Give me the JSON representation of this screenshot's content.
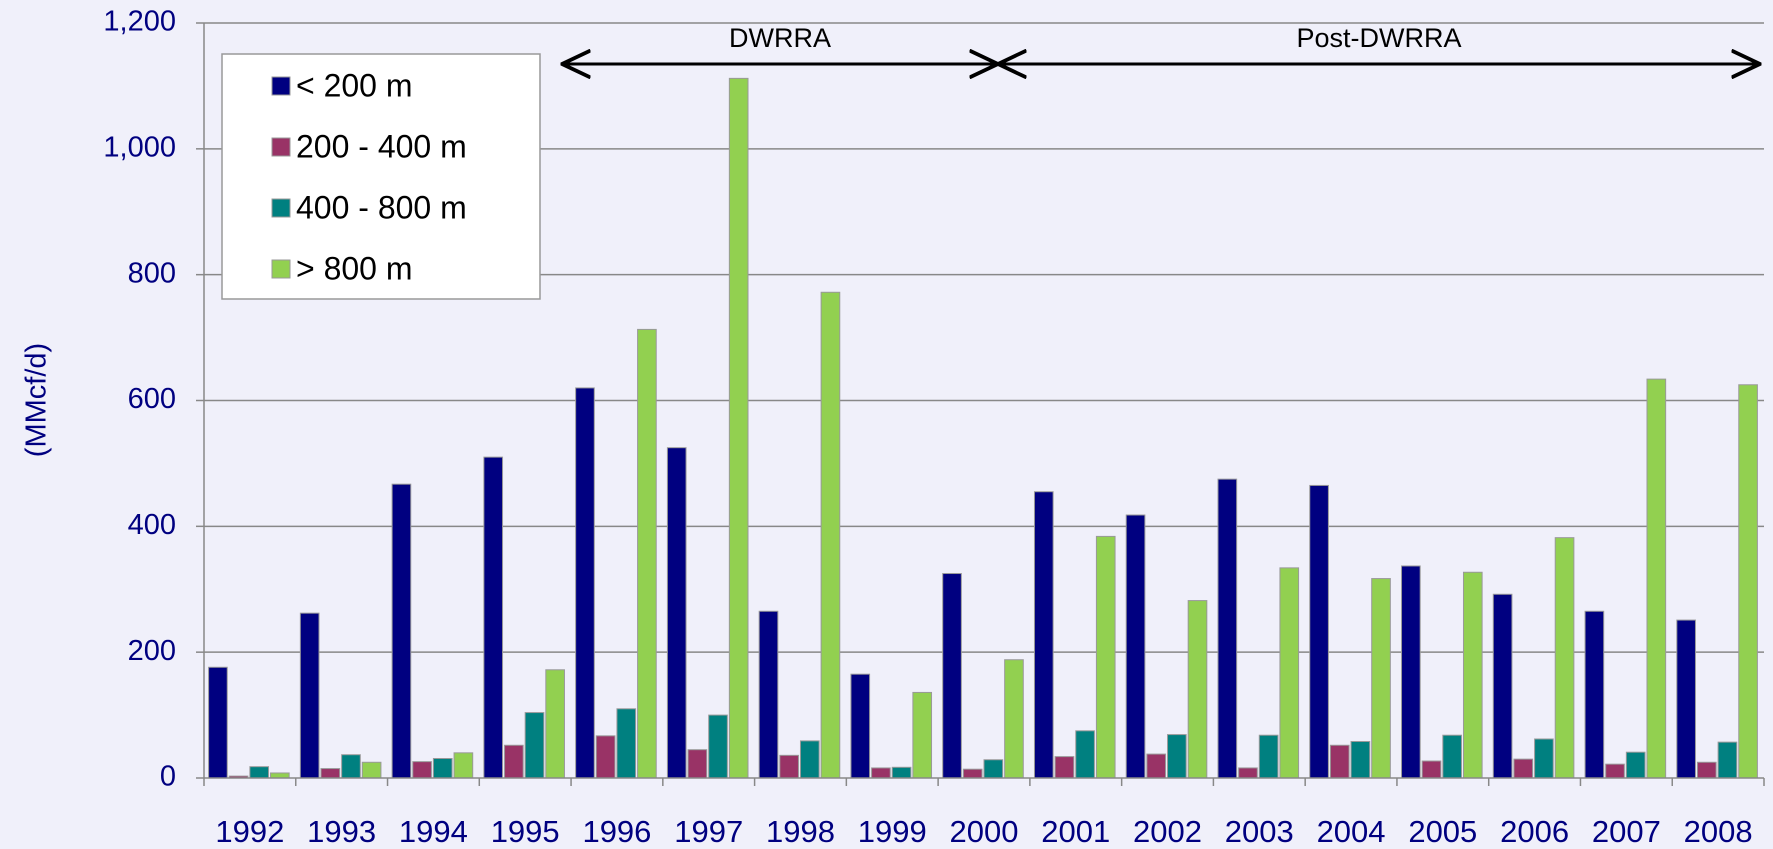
{
  "chart_data": {
    "type": "bar",
    "y_label": "(MMcf/d)",
    "annotations": [
      "DWRRA",
      "Post-DWRRA"
    ],
    "categories": [
      "1992",
      "1993",
      "1994",
      "1995",
      "1996",
      "1997",
      "1998",
      "1999",
      "2000",
      "2001",
      "2002",
      "2003",
      "2004",
      "2005",
      "2006",
      "2007",
      "2008"
    ],
    "series": [
      {
        "name": "< 200 m",
        "color": "#000080",
        "values": [
          176,
          262,
          467,
          510,
          620,
          525,
          265,
          165,
          325,
          455,
          418,
          475,
          465,
          337,
          292,
          265,
          251
        ]
      },
      {
        "name": "200 - 400 m",
        "color": "#993366",
        "values": [
          3,
          15,
          26,
          52,
          67,
          45,
          36,
          16,
          14,
          34,
          38,
          16,
          52,
          27,
          30,
          22,
          25
        ]
      },
      {
        "name": "400 - 800 m",
        "color": "#008080",
        "values": [
          18,
          37,
          31,
          104,
          110,
          100,
          59,
          17,
          29,
          75,
          69,
          68,
          58,
          68,
          62,
          41,
          57
        ]
      },
      {
        "name": "> 800 m",
        "color": "#92d050",
        "values": [
          8,
          25,
          40,
          172,
          713,
          1112,
          772,
          136,
          188,
          384,
          282,
          334,
          317,
          327,
          382,
          634,
          625
        ]
      }
    ],
    "ylim": [
      0,
      1200
    ],
    "yticks": [
      0,
      200,
      400,
      600,
      800,
      {
        "value": 1000,
        "label": "1,000"
      },
      {
        "value": 1200,
        "label": "1,200"
      }
    ],
    "grid": true,
    "legend": "top-left"
  }
}
